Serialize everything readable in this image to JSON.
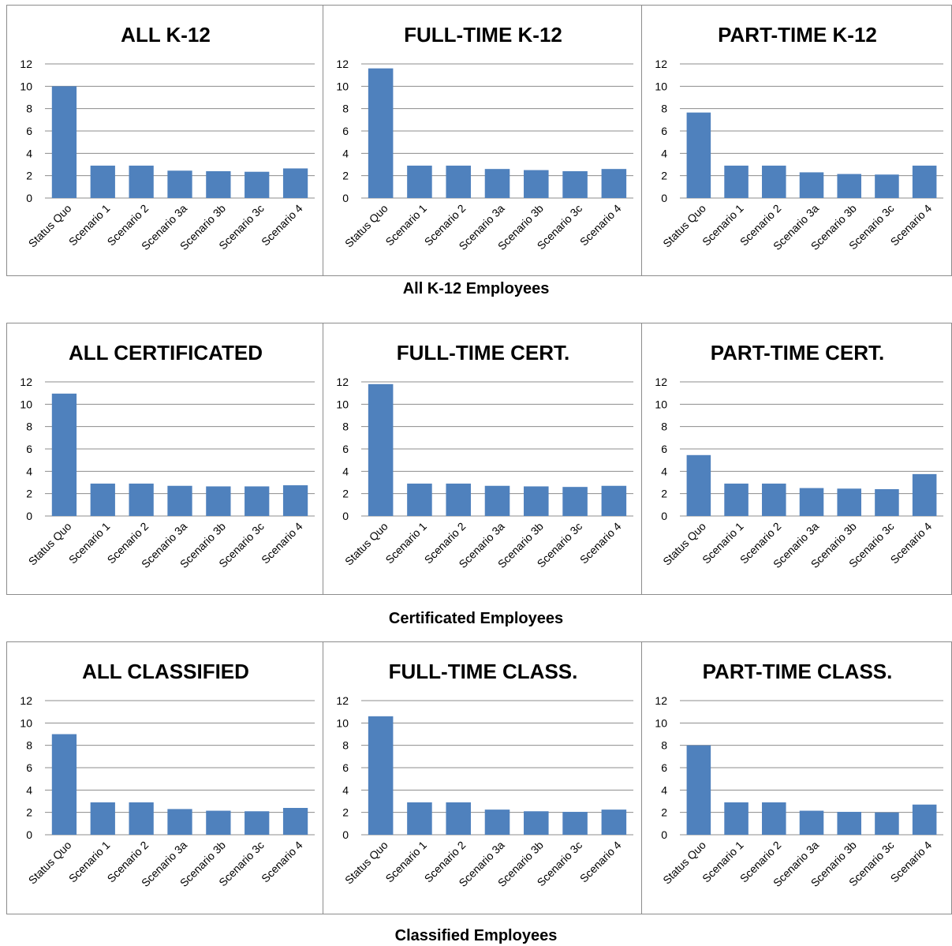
{
  "bar_color": "#4f81bd",
  "grid_color": "#8c8c8c",
  "groups": [
    {
      "caption": "All K-12 Employees",
      "charts": [
        {
          "title": "ALL K-12"
        },
        {
          "title": "FULL-TIME K-12"
        },
        {
          "title": "PART-TIME K-12"
        }
      ]
    },
    {
      "caption": "Certificated Employees",
      "charts": [
        {
          "title": "ALL CERTIFICATED"
        },
        {
          "title": "FULL-TIME CERT."
        },
        {
          "title": "PART-TIME CERT."
        }
      ]
    },
    {
      "caption": "Classified Employees",
      "charts": [
        {
          "title": "ALL CLASSIFIED"
        },
        {
          "title": "FULL-TIME CLASS."
        },
        {
          "title": "PART-TIME CLASS."
        }
      ]
    }
  ],
  "chart_data": [
    {
      "type": "bar",
      "title": "ALL K-12",
      "categories": [
        "Status Quo",
        "Scenario 1",
        "Scenario 2",
        "Scenario 3a",
        "Scenario 3b",
        "Scenario 3c",
        "Scenario 4"
      ],
      "values": [
        10.0,
        2.9,
        2.9,
        2.45,
        2.4,
        2.35,
        2.65
      ],
      "yticks": [
        "0",
        "2",
        "4",
        "6",
        "8",
        "10",
        "12"
      ],
      "ylim": [
        0,
        12
      ],
      "grid": true
    },
    {
      "type": "bar",
      "title": "FULL-TIME K-12",
      "categories": [
        "Status Quo",
        "Scenario 1",
        "Scenario 2",
        "Scenario 3a",
        "Scenario 3b",
        "Scenario 3c",
        "Scenario 4"
      ],
      "values": [
        11.6,
        2.9,
        2.9,
        2.6,
        2.5,
        2.4,
        2.6
      ],
      "yticks": [
        "0",
        "2",
        "4",
        "6",
        "8",
        "10",
        "12"
      ],
      "ylim": [
        0,
        12
      ],
      "grid": true
    },
    {
      "type": "bar",
      "title": "PART-TIME K-12",
      "categories": [
        "Status Quo",
        "Scenario 1",
        "Scenario 2",
        "Scenario 3a",
        "Scenario 3b",
        "Scenario 3c",
        "Scenario 4"
      ],
      "values": [
        7.65,
        2.9,
        2.9,
        2.3,
        2.15,
        2.1,
        2.9
      ],
      "yticks": [
        "0",
        "2",
        "4",
        "6",
        "8",
        "10",
        "12"
      ],
      "ylim": [
        0,
        12
      ],
      "grid": true
    },
    {
      "type": "bar",
      "title": "ALL CERTIFICATED",
      "categories": [
        "Status Quo",
        "Scenario 1",
        "Scenario 2",
        "Scenario 3a",
        "Scenario 3b",
        "Scenario 3c",
        "Scenario 4"
      ],
      "values": [
        10.95,
        2.9,
        2.9,
        2.7,
        2.65,
        2.65,
        2.75
      ],
      "yticks": [
        "0",
        "2",
        "4",
        "6",
        "8",
        "10",
        "12"
      ],
      "ylim": [
        0,
        12
      ],
      "grid": true
    },
    {
      "type": "bar",
      "title": "FULL-TIME CERT.",
      "categories": [
        "Status Quo",
        "Scenario 1",
        "Scenario 2",
        "Scenario 3a",
        "Scenario 3b",
        "Scenario 3c",
        "Scenario 4"
      ],
      "values": [
        11.8,
        2.9,
        2.9,
        2.7,
        2.65,
        2.6,
        2.7
      ],
      "yticks": [
        "0",
        "2",
        "4",
        "6",
        "8",
        "10",
        "12"
      ],
      "ylim": [
        0,
        12
      ],
      "grid": true
    },
    {
      "type": "bar",
      "title": "PART-TIME CERT.",
      "categories": [
        "Status Quo",
        "Scenario 1",
        "Scenario 2",
        "Scenario 3a",
        "Scenario 3b",
        "Scenario 3c",
        "Scenario 4"
      ],
      "values": [
        5.45,
        2.9,
        2.9,
        2.5,
        2.45,
        2.4,
        3.75
      ],
      "yticks": [
        "0",
        "2",
        "4",
        "6",
        "8",
        "10",
        "12"
      ],
      "ylim": [
        0,
        12
      ],
      "grid": true
    },
    {
      "type": "bar",
      "title": "ALL CLASSIFIED",
      "categories": [
        "Status Quo",
        "Scenario 1",
        "Scenario 2",
        "Scenario 3a",
        "Scenario 3b",
        "Scenario 3c",
        "Scenario 4"
      ],
      "values": [
        9.0,
        2.9,
        2.9,
        2.3,
        2.15,
        2.1,
        2.4
      ],
      "yticks": [
        "0",
        "2",
        "4",
        "6",
        "8",
        "10",
        "12"
      ],
      "ylim": [
        0,
        12
      ],
      "grid": true
    },
    {
      "type": "bar",
      "title": "FULL-TIME CLASS.",
      "categories": [
        "Status Quo",
        "Scenario 1",
        "Scenario 2",
        "Scenario 3a",
        "Scenario 3b",
        "Scenario 3c",
        "Scenario 4"
      ],
      "values": [
        10.6,
        2.9,
        2.9,
        2.25,
        2.1,
        2.05,
        2.25
      ],
      "yticks": [
        "0",
        "2",
        "4",
        "6",
        "8",
        "10",
        "12"
      ],
      "ylim": [
        0,
        12
      ],
      "grid": true
    },
    {
      "type": "bar",
      "title": "PART-TIME CLASS.",
      "categories": [
        "Status Quo",
        "Scenario 1",
        "Scenario 2",
        "Scenario 3a",
        "Scenario 3b",
        "Scenario 3c",
        "Scenario 4"
      ],
      "values": [
        8.0,
        2.9,
        2.9,
        2.15,
        2.05,
        2.0,
        2.7
      ],
      "yticks": [
        "0",
        "2",
        "4",
        "6",
        "8",
        "10",
        "12"
      ],
      "ylim": [
        0,
        12
      ],
      "grid": true
    }
  ]
}
